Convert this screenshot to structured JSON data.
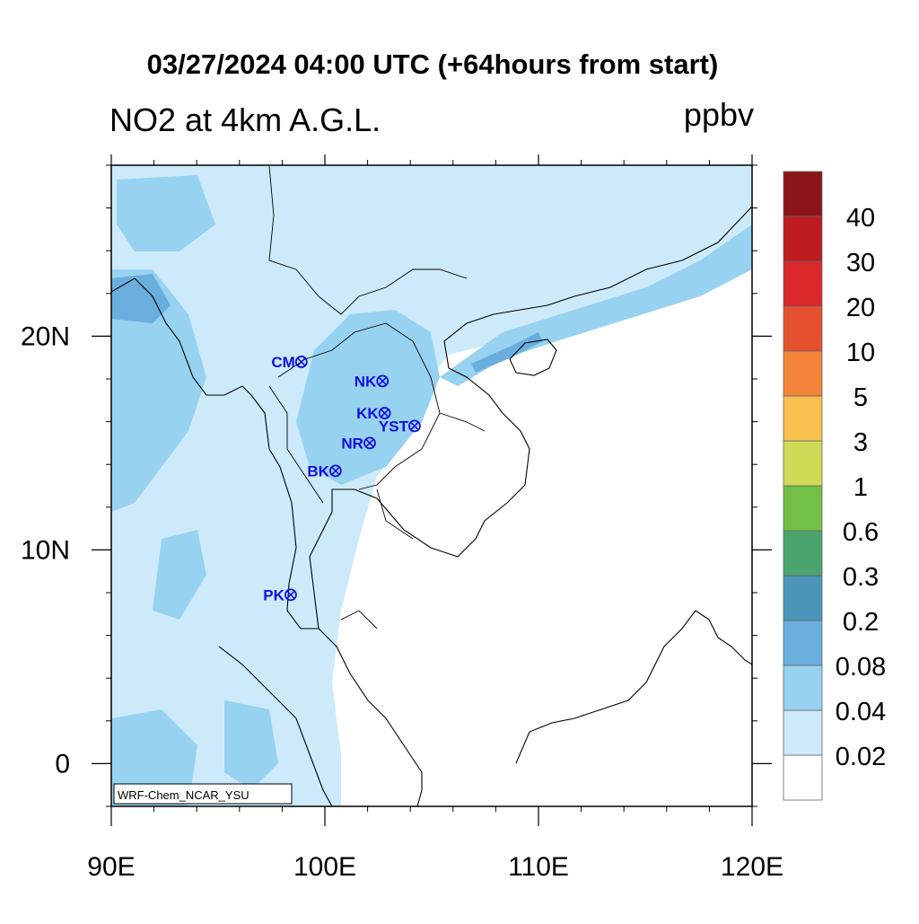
{
  "header": {
    "time_title": "03/27/2024 04:00 UTC (+64hours from start)",
    "field_title": "NO2 at 4km A.G.L.",
    "units": "ppbv"
  },
  "map": {
    "credit": "WRF-Chem_NCAR_YSU",
    "lon_range": [
      90,
      120
    ],
    "lat_range": [
      -2,
      28
    ],
    "x_ticks": [
      {
        "lon": 90,
        "label": "90E"
      },
      {
        "lon": 100,
        "label": "100E"
      },
      {
        "lon": 110,
        "label": "110E"
      },
      {
        "lon": 120,
        "label": "120E"
      }
    ],
    "y_ticks": [
      {
        "lat": 0,
        "label": "0"
      },
      {
        "lat": 10,
        "label": "10N"
      },
      {
        "lat": 20,
        "label": "20N"
      }
    ],
    "stations": [
      {
        "label": "CM",
        "lon": 98.9,
        "lat": 18.8
      },
      {
        "label": "NK",
        "lon": 102.7,
        "lat": 17.9
      },
      {
        "label": "KK",
        "lon": 102.8,
        "lat": 16.4
      },
      {
        "label": "YST",
        "lon": 104.2,
        "lat": 15.8
      },
      {
        "label": "NR",
        "lon": 102.1,
        "lat": 15.0
      },
      {
        "label": "BK",
        "lon": 100.5,
        "lat": 13.7
      },
      {
        "label": "PK",
        "lon": 98.4,
        "lat": 7.9
      }
    ],
    "colors": {
      "station": "#1010e0",
      "land_line": "#000000"
    }
  },
  "colorbar": {
    "levels": [
      "0.02",
      "0.04",
      "0.08",
      "0.2",
      "0.3",
      "0.6",
      "1",
      "3",
      "5",
      "10",
      "20",
      "30",
      "40"
    ],
    "colors": [
      "#ffffff",
      "#cdeafa",
      "#98d2f1",
      "#6aaede",
      "#4a95b8",
      "#4aa46e",
      "#72c045",
      "#cfdb57",
      "#f8c150",
      "#f3843a",
      "#e5502e",
      "#d9272a",
      "#bf1c20",
      "#8c1519"
    ]
  }
}
